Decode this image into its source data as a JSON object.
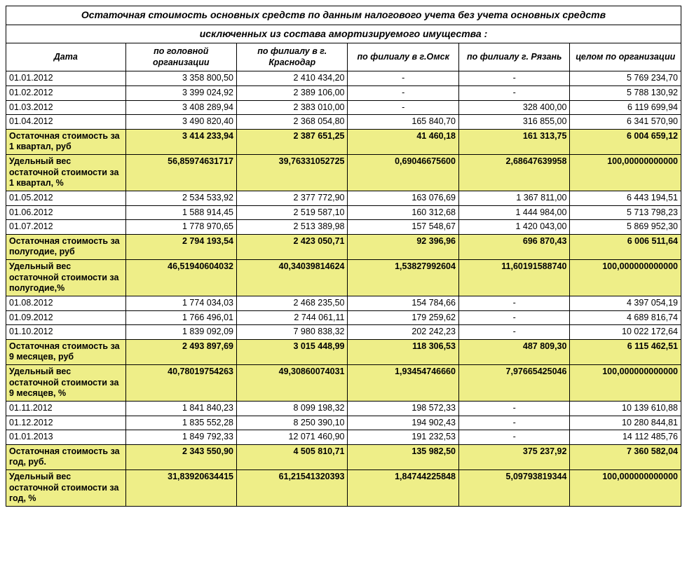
{
  "title_line1": "Остаточная стоимость основных средств по данным налогового учета без учета основных средств",
  "title_line2": "исключенных из состава амортизируемого имущества :",
  "headers": {
    "date": "Дата",
    "c1": "по головной организации",
    "c2": "по филиалу в г. Краснодар",
    "c3": "по филиалу в г.Омск",
    "c4": "по филиалу  г. Рязань",
    "c5": "целом по организации"
  },
  "rows": [
    {
      "type": "data",
      "d": "01.01.2012",
      "v": [
        "3 358 800,50",
        "2 410 434,20",
        "-",
        "-",
        "5 769 234,70"
      ]
    },
    {
      "type": "data",
      "d": "01.02.2012",
      "v": [
        "3 399 024,92",
        "2 389 106,00",
        "-",
        "-",
        "5 788 130,92"
      ]
    },
    {
      "type": "data",
      "d": "01.03.2012",
      "v": [
        "3 408 289,94",
        "2 383 010,00",
        "-",
        "328 400,00",
        "6 119 699,94"
      ]
    },
    {
      "type": "data",
      "d": "01.04.2012",
      "v": [
        "3 490 820,40",
        "2 368 054,80",
        "165 840,70",
        "316 855,00",
        "6 341 570,90"
      ]
    },
    {
      "type": "hl",
      "d": "Остаточная стоимость за 1 квартал, руб",
      "v": [
        "3 414 233,94",
        "2 387 651,25",
        "41 460,18",
        "161 313,75",
        "6 004 659,12"
      ]
    },
    {
      "type": "hl",
      "d": "Удельный вес остаточной стоимости за 1 квартал, %",
      "v": [
        "56,85974631717",
        "39,76331052725",
        "0,69046675600",
        "2,68647639958",
        "100,00000000000"
      ]
    },
    {
      "type": "data",
      "d": "01.05.2012",
      "v": [
        "2 534 533,92",
        "2 377 772,90",
        "163 076,69",
        "1 367 811,00",
        "6 443 194,51"
      ]
    },
    {
      "type": "data",
      "d": "01.06.2012",
      "v": [
        "1 588 914,45",
        "2 519 587,10",
        "160 312,68",
        "1 444 984,00",
        "5 713 798,23"
      ]
    },
    {
      "type": "data",
      "d": "01.07.2012",
      "v": [
        "1 778 970,65",
        "2 513 389,98",
        "157 548,67",
        "1 420 043,00",
        "5 869 952,30"
      ]
    },
    {
      "type": "hl",
      "d": "Остаточная стоимость за полугодие, руб",
      "v": [
        "2 794 193,54",
        "2 423 050,71",
        "92 396,96",
        "696 870,43",
        "6 006 511,64"
      ]
    },
    {
      "type": "hl",
      "d": "Удельный вес остаточной стоимости за полугодие,%",
      "v": [
        "46,51940604032",
        "40,34039814624",
        "1,53827992604",
        "11,60191588740",
        "100,000000000000"
      ]
    },
    {
      "type": "data",
      "d": "01.08.2012",
      "v": [
        "1 774 034,03",
        "2 468 235,50",
        "154 784,66",
        "-",
        "4 397 054,19"
      ]
    },
    {
      "type": "data",
      "d": "01.09.2012",
      "v": [
        "1 766 496,01",
        "2 744 061,11",
        "179 259,62",
        "-",
        "4 689 816,74"
      ]
    },
    {
      "type": "data",
      "d": "01.10.2012",
      "v": [
        "1 839 092,09",
        "7 980 838,32",
        "202 242,23",
        "-",
        "10 022 172,64"
      ]
    },
    {
      "type": "hl",
      "d": "Остаточная стоимость за 9 месяцев, руб",
      "v": [
        "2 493 897,69",
        "3 015 448,99",
        "118 306,53",
        "487 809,30",
        "6 115 462,51"
      ]
    },
    {
      "type": "hl",
      "d": "Удельный вес остаточной стоимости за 9 месяцев, %",
      "v": [
        "40,78019754263",
        "49,30860074031",
        "1,93454746660",
        "7,97665425046",
        "100,000000000000"
      ]
    },
    {
      "type": "data",
      "d": "01.11.2012",
      "v": [
        "1 841 840,23",
        "8 099 198,32",
        "198 572,33",
        "-",
        "10 139 610,88"
      ]
    },
    {
      "type": "data",
      "d": "01.12.2012",
      "v": [
        "1 835 552,28",
        "8 250 390,10",
        "194 902,43",
        "-",
        "10 280 844,81"
      ]
    },
    {
      "type": "data",
      "d": "01.01.2013",
      "v": [
        "1 849 792,33",
        "12 071 460,90",
        "191 232,53",
        "-",
        "14 112 485,76"
      ]
    },
    {
      "type": "hl",
      "d": "Остаточная стоимость за год, руб.",
      "v": [
        "2 343 550,90",
        "4 505 810,71",
        "135 982,50",
        "375 237,92",
        "7 360 582,04"
      ]
    },
    {
      "type": "hl",
      "d": "Удельный вес остаточной стоимости за год, %",
      "v": [
        "31,83920634415",
        "61,21541320393",
        "1,84744225848",
        "5,09793819344",
        "100,000000000000"
      ]
    }
  ],
  "colors": {
    "highlight": "#eeee88",
    "border": "#000000",
    "background": "#ffffff"
  }
}
